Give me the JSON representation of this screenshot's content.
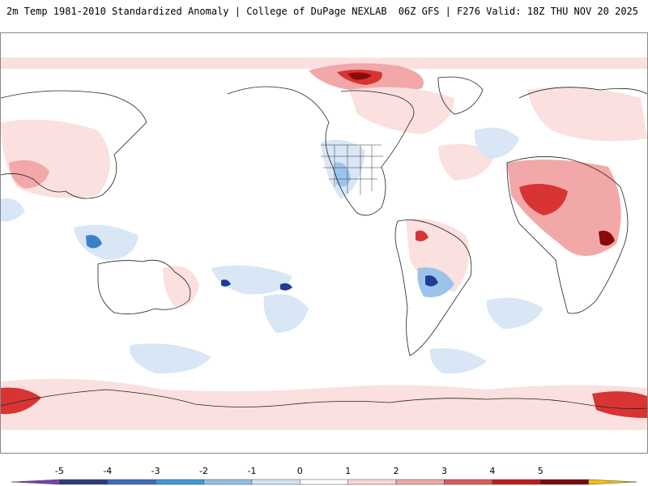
{
  "header": {
    "title": "2m Temp 1981-2010 Standardized Anomaly | College of DuPage NEXLAB",
    "run_info": "06Z GFS | F276 Valid: 18Z THU NOV 20 2025"
  },
  "colorbar": {
    "ticks": [
      "-5",
      "-4",
      "-3",
      "-2",
      "-1",
      "0",
      "1",
      "2",
      "3",
      "4",
      "5"
    ],
    "segments": [
      "#7a3fb0",
      "#2b3e7a",
      "#3a6cc0",
      "#3c9ad8",
      "#8fc0e6",
      "#d2e4f4",
      "#ffffff",
      "#fad6d6",
      "#f0a8a8",
      "#dc5a5a",
      "#c21a1a",
      "#7a0a0a",
      "#f2c200"
    ]
  },
  "colors": {
    "warm_light": "#fbe0e0",
    "warm_mid": "#f2a8a8",
    "warm_strong": "#d83434",
    "warm_extreme": "#8b0a0a",
    "cool_light": "#d8e6f6",
    "cool_mid": "#9cc4ea",
    "cool_strong": "#3d7fcc",
    "cool_extreme": "#1f3c96",
    "coastline": "#222222"
  }
}
